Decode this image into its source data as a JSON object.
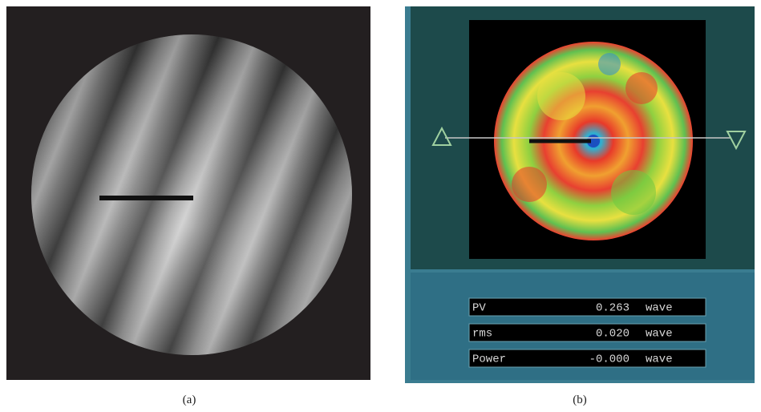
{
  "panels": [
    {
      "label": "(a)"
    },
    {
      "label": "(b)",
      "readouts": [
        {
          "name": "PV",
          "value": "0.263",
          "unit": "wave"
        },
        {
          "name": "rms",
          "value": "0.020",
          "unit": "wave"
        },
        {
          "name": "Power",
          "value": "-0.000",
          "unit": "wave"
        }
      ]
    }
  ]
}
